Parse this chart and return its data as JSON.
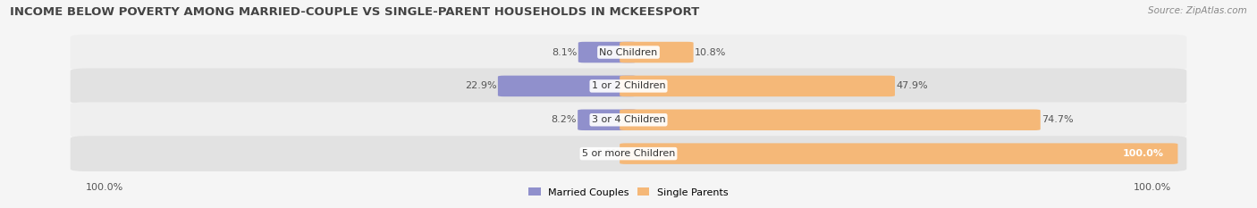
{
  "title": "INCOME BELOW POVERTY AMONG MARRIED-COUPLE VS SINGLE-PARENT HOUSEHOLDS IN MCKEESPORT",
  "source": "Source: ZipAtlas.com",
  "categories": [
    "No Children",
    "1 or 2 Children",
    "3 or 4 Children",
    "5 or more Children"
  ],
  "married_values": [
    8.1,
    22.9,
    8.2,
    0.0
  ],
  "single_values": [
    10.8,
    47.9,
    74.7,
    100.0
  ],
  "married_color": "#9090cc",
  "single_color": "#f5b878",
  "row_bg_light": "#efefef",
  "row_bg_dark": "#e2e2e2",
  "title_fontsize": 9.5,
  "label_fontsize": 8,
  "tick_fontsize": 8,
  "source_fontsize": 7.5,
  "max_val": 100.0,
  "left_label": "100.0%",
  "right_label": "100.0%",
  "fig_bg": "#f5f5f5"
}
